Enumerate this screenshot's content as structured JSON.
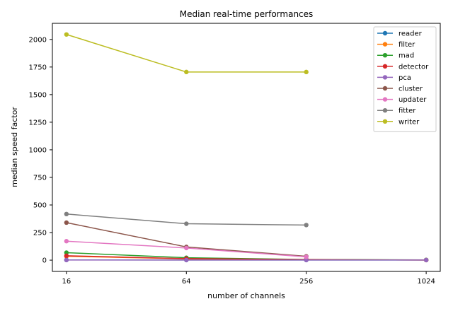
{
  "chart_data": {
    "type": "line",
    "title": "Median real-time performances",
    "xlabel": "number of channels",
    "ylabel": "median speed factor",
    "x_scale": "log2",
    "x_ticks": [
      16,
      64,
      256,
      1024
    ],
    "x_tick_labels": [
      "16",
      "64",
      "256",
      "1024"
    ],
    "xlim": [
      13.6,
      1205
    ],
    "y_ticks": [
      0,
      250,
      500,
      750,
      1000,
      1250,
      1500,
      1750,
      2000
    ],
    "y_tick_labels": [
      "0",
      "250",
      "500",
      "750",
      "1000",
      "1250",
      "1500",
      "1750",
      "2000"
    ],
    "ylim": [
      -102,
      2146
    ],
    "grid": false,
    "legend_position": "top-right",
    "series": [
      {
        "name": "reader",
        "color": "#1f77b4",
        "x": [
          16,
          64,
          256,
          1024
        ],
        "y": [
          2,
          1,
          1,
          1
        ]
      },
      {
        "name": "filter",
        "color": "#ff7f0e",
        "x": [
          16,
          64,
          256,
          1024
        ],
        "y": [
          35,
          12,
          4,
          1
        ]
      },
      {
        "name": "mad",
        "color": "#2ca02c",
        "x": [
          16,
          64,
          256,
          1024
        ],
        "y": [
          68,
          22,
          6,
          2
        ]
      },
      {
        "name": "detector",
        "color": "#d62728",
        "x": [
          16,
          64,
          256,
          1024
        ],
        "y": [
          40,
          14,
          5,
          1
        ]
      },
      {
        "name": "pca",
        "color": "#9467bd",
        "x": [
          16,
          64,
          256,
          1024
        ],
        "y": [
          1,
          1,
          1,
          1
        ]
      },
      {
        "name": "cluster",
        "color": "#8c564b",
        "x": [
          16,
          64,
          256
        ],
        "y": [
          340,
          120,
          35
        ]
      },
      {
        "name": "updater",
        "color": "#e377c2",
        "x": [
          16,
          64,
          256
        ],
        "y": [
          172,
          110,
          30
        ]
      },
      {
        "name": "fitter",
        "color": "#7f7f7f",
        "x": [
          16,
          64,
          256
        ],
        "y": [
          418,
          330,
          318
        ]
      },
      {
        "name": "writer",
        "color": "#bcbd22",
        "x": [
          16,
          64,
          256
        ],
        "y": [
          2045,
          1705,
          1705
        ]
      }
    ]
  }
}
